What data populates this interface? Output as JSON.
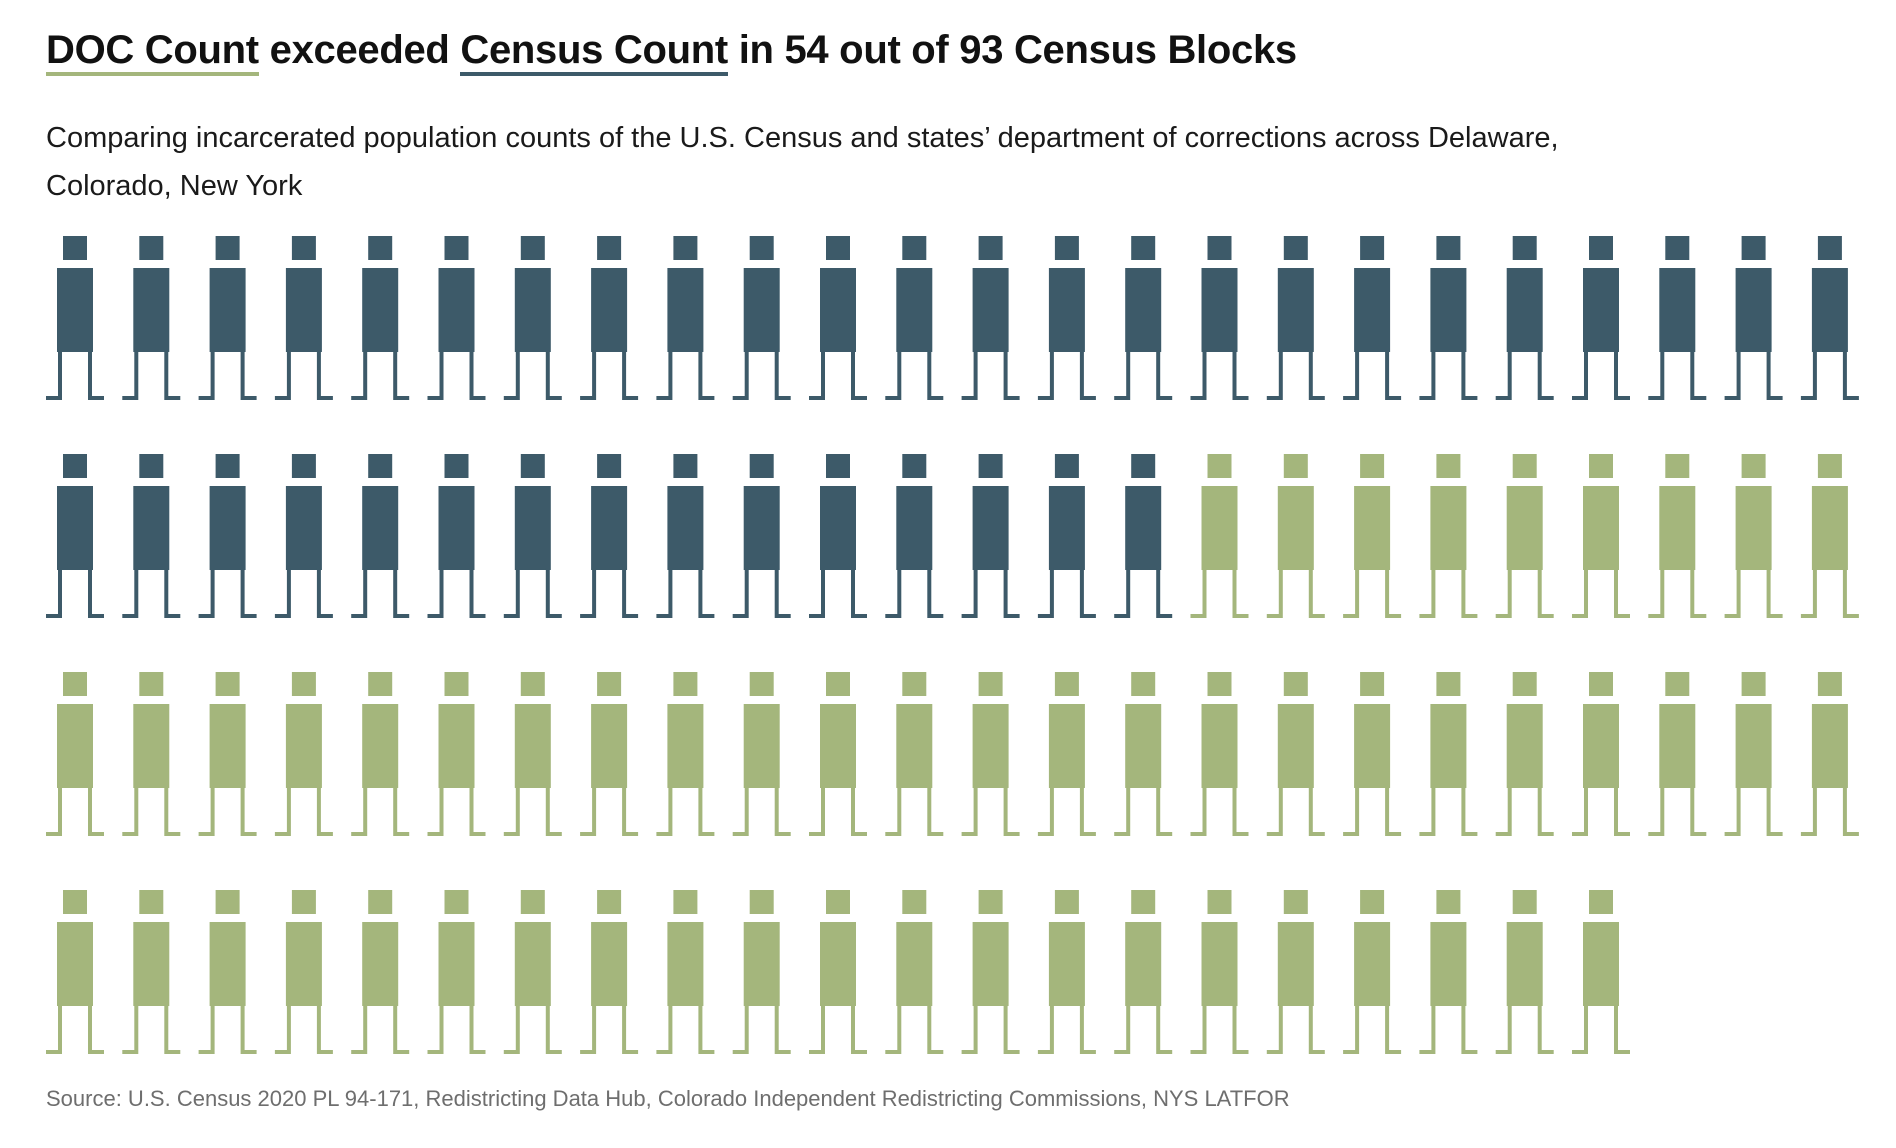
{
  "title": {
    "part1": "DOC Count",
    "part2": " exceeded ",
    "part3": "Census Count",
    "part4": " in 54 out of 93 Census Blocks"
  },
  "subtitle": "Comparing incarcerated population counts of the U.S. Census and states’ department of corrections across Delaware, Colorado, New York",
  "source": "Source: U.S. Census 2020 PL 94-171, Redistricting Data Hub, Colorado Independent Redistricting Commissions, NYS LATFOR",
  "chart_data": {
    "type": "pictogram",
    "unit": "census-block",
    "total": 93,
    "icons_per_row": 24,
    "series": [
      {
        "name": "Census Count",
        "value": 39,
        "color": "#3d5a69"
      },
      {
        "name": "DOC Count",
        "value": 54,
        "color": "#a4b67c"
      }
    ]
  }
}
